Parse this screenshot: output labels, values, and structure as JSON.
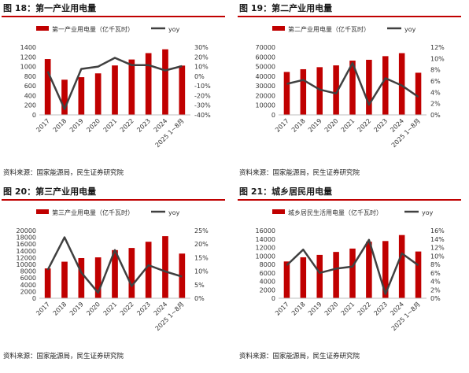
{
  "panels": [
    {
      "id": "fig18",
      "title": "图 18：第一产业用电量",
      "source": "资料来源：国家能源局，民生证券研究院",
      "chart_data": {
        "type": "bar",
        "categories": [
          "2017",
          "2018",
          "2019",
          "2020",
          "2021",
          "2022",
          "2023",
          "2024",
          "2025 1~8月"
        ],
        "series": [
          {
            "name": "第一产业用电量（亿千瓦时）",
            "type": "bar",
            "axis": "left",
            "values": [
              1155,
              728,
              780,
              859,
              1023,
              1146,
              1278,
              1357,
              1020
            ]
          },
          {
            "name": "yoy",
            "type": "line",
            "axis": "right",
            "values": [
              5.0,
              -34.0,
              7.5,
              10.0,
              19.0,
              11.5,
              11.5,
              6.0,
              10.5
            ]
          }
        ],
        "left_axis": {
          "min": 0,
          "max": 1400,
          "step": 200,
          "ticks": [
            "0",
            "200",
            "400",
            "600",
            "800",
            "1000",
            "1200",
            "1400"
          ]
        },
        "right_axis": {
          "min": -40,
          "max": 30,
          "step": 10,
          "ticks": [
            "-40%",
            "-30%",
            "-20%",
            "-10%",
            "0%",
            "10%",
            "20%",
            "30%"
          ]
        },
        "legend_position": "top"
      }
    },
    {
      "id": "fig19",
      "title": "图 19：第二产业用电量",
      "source": "资料来源：国家能源局，民生证券研究院",
      "chart_data": {
        "type": "bar",
        "categories": [
          "2017",
          "2018",
          "2019",
          "2020",
          "2021",
          "2022",
          "2023",
          "2024",
          "2025 1~8月"
        ],
        "series": [
          {
            "name": "第二产业用电量（亿千瓦时）",
            "type": "bar",
            "axis": "left",
            "values": [
              44413,
              47235,
              49362,
              51215,
              56131,
              57001,
              60745,
              63874,
              43600
            ]
          },
          {
            "name": "yoy",
            "type": "line",
            "axis": "right",
            "values": [
              5.5,
              6.2,
              4.5,
              3.8,
              9.2,
              1.8,
              6.5,
              5.2,
              3.2
            ]
          }
        ],
        "left_axis": {
          "min": 0,
          "max": 70000,
          "step": 10000,
          "ticks": [
            "0",
            "10000",
            "20000",
            "30000",
            "40000",
            "50000",
            "60000",
            "70000"
          ]
        },
        "right_axis": {
          "min": 0,
          "max": 12,
          "step": 2,
          "ticks": [
            "0%",
            "2%",
            "4%",
            "6%",
            "8%",
            "10%",
            "12%"
          ]
        },
        "legend_position": "top"
      }
    },
    {
      "id": "fig20",
      "title": "图 20：第三产业用电量",
      "source": "资料来源：国家能源局，民生证券研究院",
      "chart_data": {
        "type": "bar",
        "categories": [
          "2017",
          "2018",
          "2019",
          "2020",
          "2021",
          "2022",
          "2023",
          "2024",
          "2025 1~8月"
        ],
        "series": [
          {
            "name": "第三产业用电量（亿千瓦时）",
            "type": "bar",
            "axis": "left",
            "values": [
              8814,
              10801,
              11863,
              12087,
              14231,
              14859,
              16694,
              18348,
              13200
            ]
          },
          {
            "name": "yoy",
            "type": "line",
            "axis": "right",
            "values": [
              10.5,
              22.5,
              9.5,
              2.0,
              17.8,
              4.5,
              12.2,
              9.9,
              8.0
            ]
          }
        ],
        "left_axis": {
          "min": 0,
          "max": 20000,
          "step": 2000,
          "ticks": [
            "0",
            "2000",
            "4000",
            "6000",
            "8000",
            "10000",
            "12000",
            "14000",
            "16000",
            "18000",
            "20000"
          ]
        },
        "right_axis": {
          "min": 0,
          "max": 25,
          "step": 5,
          "ticks": [
            "0%",
            "5%",
            "10%",
            "15%",
            "20%",
            "25%"
          ]
        },
        "legend_position": "top"
      }
    },
    {
      "id": "fig21",
      "title": "图 21：城乡居民用电量",
      "source": "资料来源：国家能源局，民生证券研究院",
      "chart_data": {
        "type": "bar",
        "categories": [
          "2017",
          "2018",
          "2019",
          "2020",
          "2021",
          "2022",
          "2023",
          "2024",
          "2025 1~8月"
        ],
        "series": [
          {
            "name": "城乡居民生活用电量（亿千瓦时）",
            "type": "bar",
            "axis": "left",
            "values": [
              8695,
              9685,
              10250,
              10949,
              11743,
              13366,
              13524,
              14942,
              11050
            ]
          },
          {
            "name": "yoy",
            "type": "line",
            "axis": "right",
            "values": [
              7.8,
              11.5,
              6.0,
              7.0,
              7.5,
              13.8,
              1.0,
              10.6,
              7.8
            ]
          }
        ],
        "left_axis": {
          "min": 0,
          "max": 16000,
          "step": 2000,
          "ticks": [
            "0",
            "2000",
            "4000",
            "6000",
            "8000",
            "10000",
            "12000",
            "14000",
            "16000"
          ]
        },
        "right_axis": {
          "min": 0,
          "max": 16,
          "step": 2,
          "ticks": [
            "0%",
            "2%",
            "4%",
            "6%",
            "8%",
            "10%",
            "12%",
            "14%",
            "16%"
          ]
        },
        "legend_position": "top"
      }
    }
  ],
  "colors": {
    "bar": "#c00000",
    "line": "#404040",
    "title_rule": "#c00000"
  }
}
